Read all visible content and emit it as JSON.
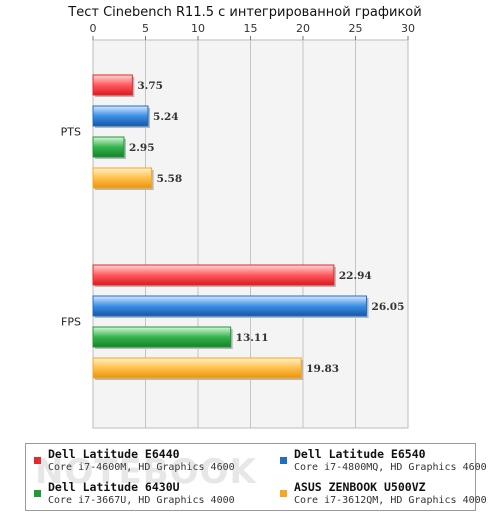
{
  "chart_data": {
    "type": "bar",
    "orientation": "horizontal",
    "title": "Тест Cinebench R11.5 с интегрированной графикой",
    "categories": [
      "PTS",
      "FPS"
    ],
    "xlim": [
      0,
      30
    ],
    "x_ticks": [
      0,
      5,
      10,
      15,
      20,
      25,
      30
    ],
    "grid": true,
    "legend_position": "bottom",
    "series": [
      {
        "name": "Dell Latitude E6440",
        "detail": "Core i7-4600M, HD Graphics 4600",
        "color": "#e8262d",
        "values": [
          3.75,
          22.94
        ]
      },
      {
        "name": "Dell Latitude E6540",
        "detail": "Core i7-4800MQ, HD Graphics 4600",
        "color": "#1c6fc7",
        "values": [
          5.24,
          26.05
        ]
      },
      {
        "name": "Dell Latitude 6430U",
        "detail": "Core i7-3667U, HD Graphics 4000",
        "color": "#1f9a38",
        "values": [
          2.95,
          13.11
        ]
      },
      {
        "name": "ASUS ZENBOOK U500VZ",
        "detail": "Core i7-3612QM, HD Graphics 4000",
        "color": "#f5a623",
        "values": [
          5.58,
          19.83
        ]
      }
    ]
  },
  "watermark": "NOTEBOOK"
}
